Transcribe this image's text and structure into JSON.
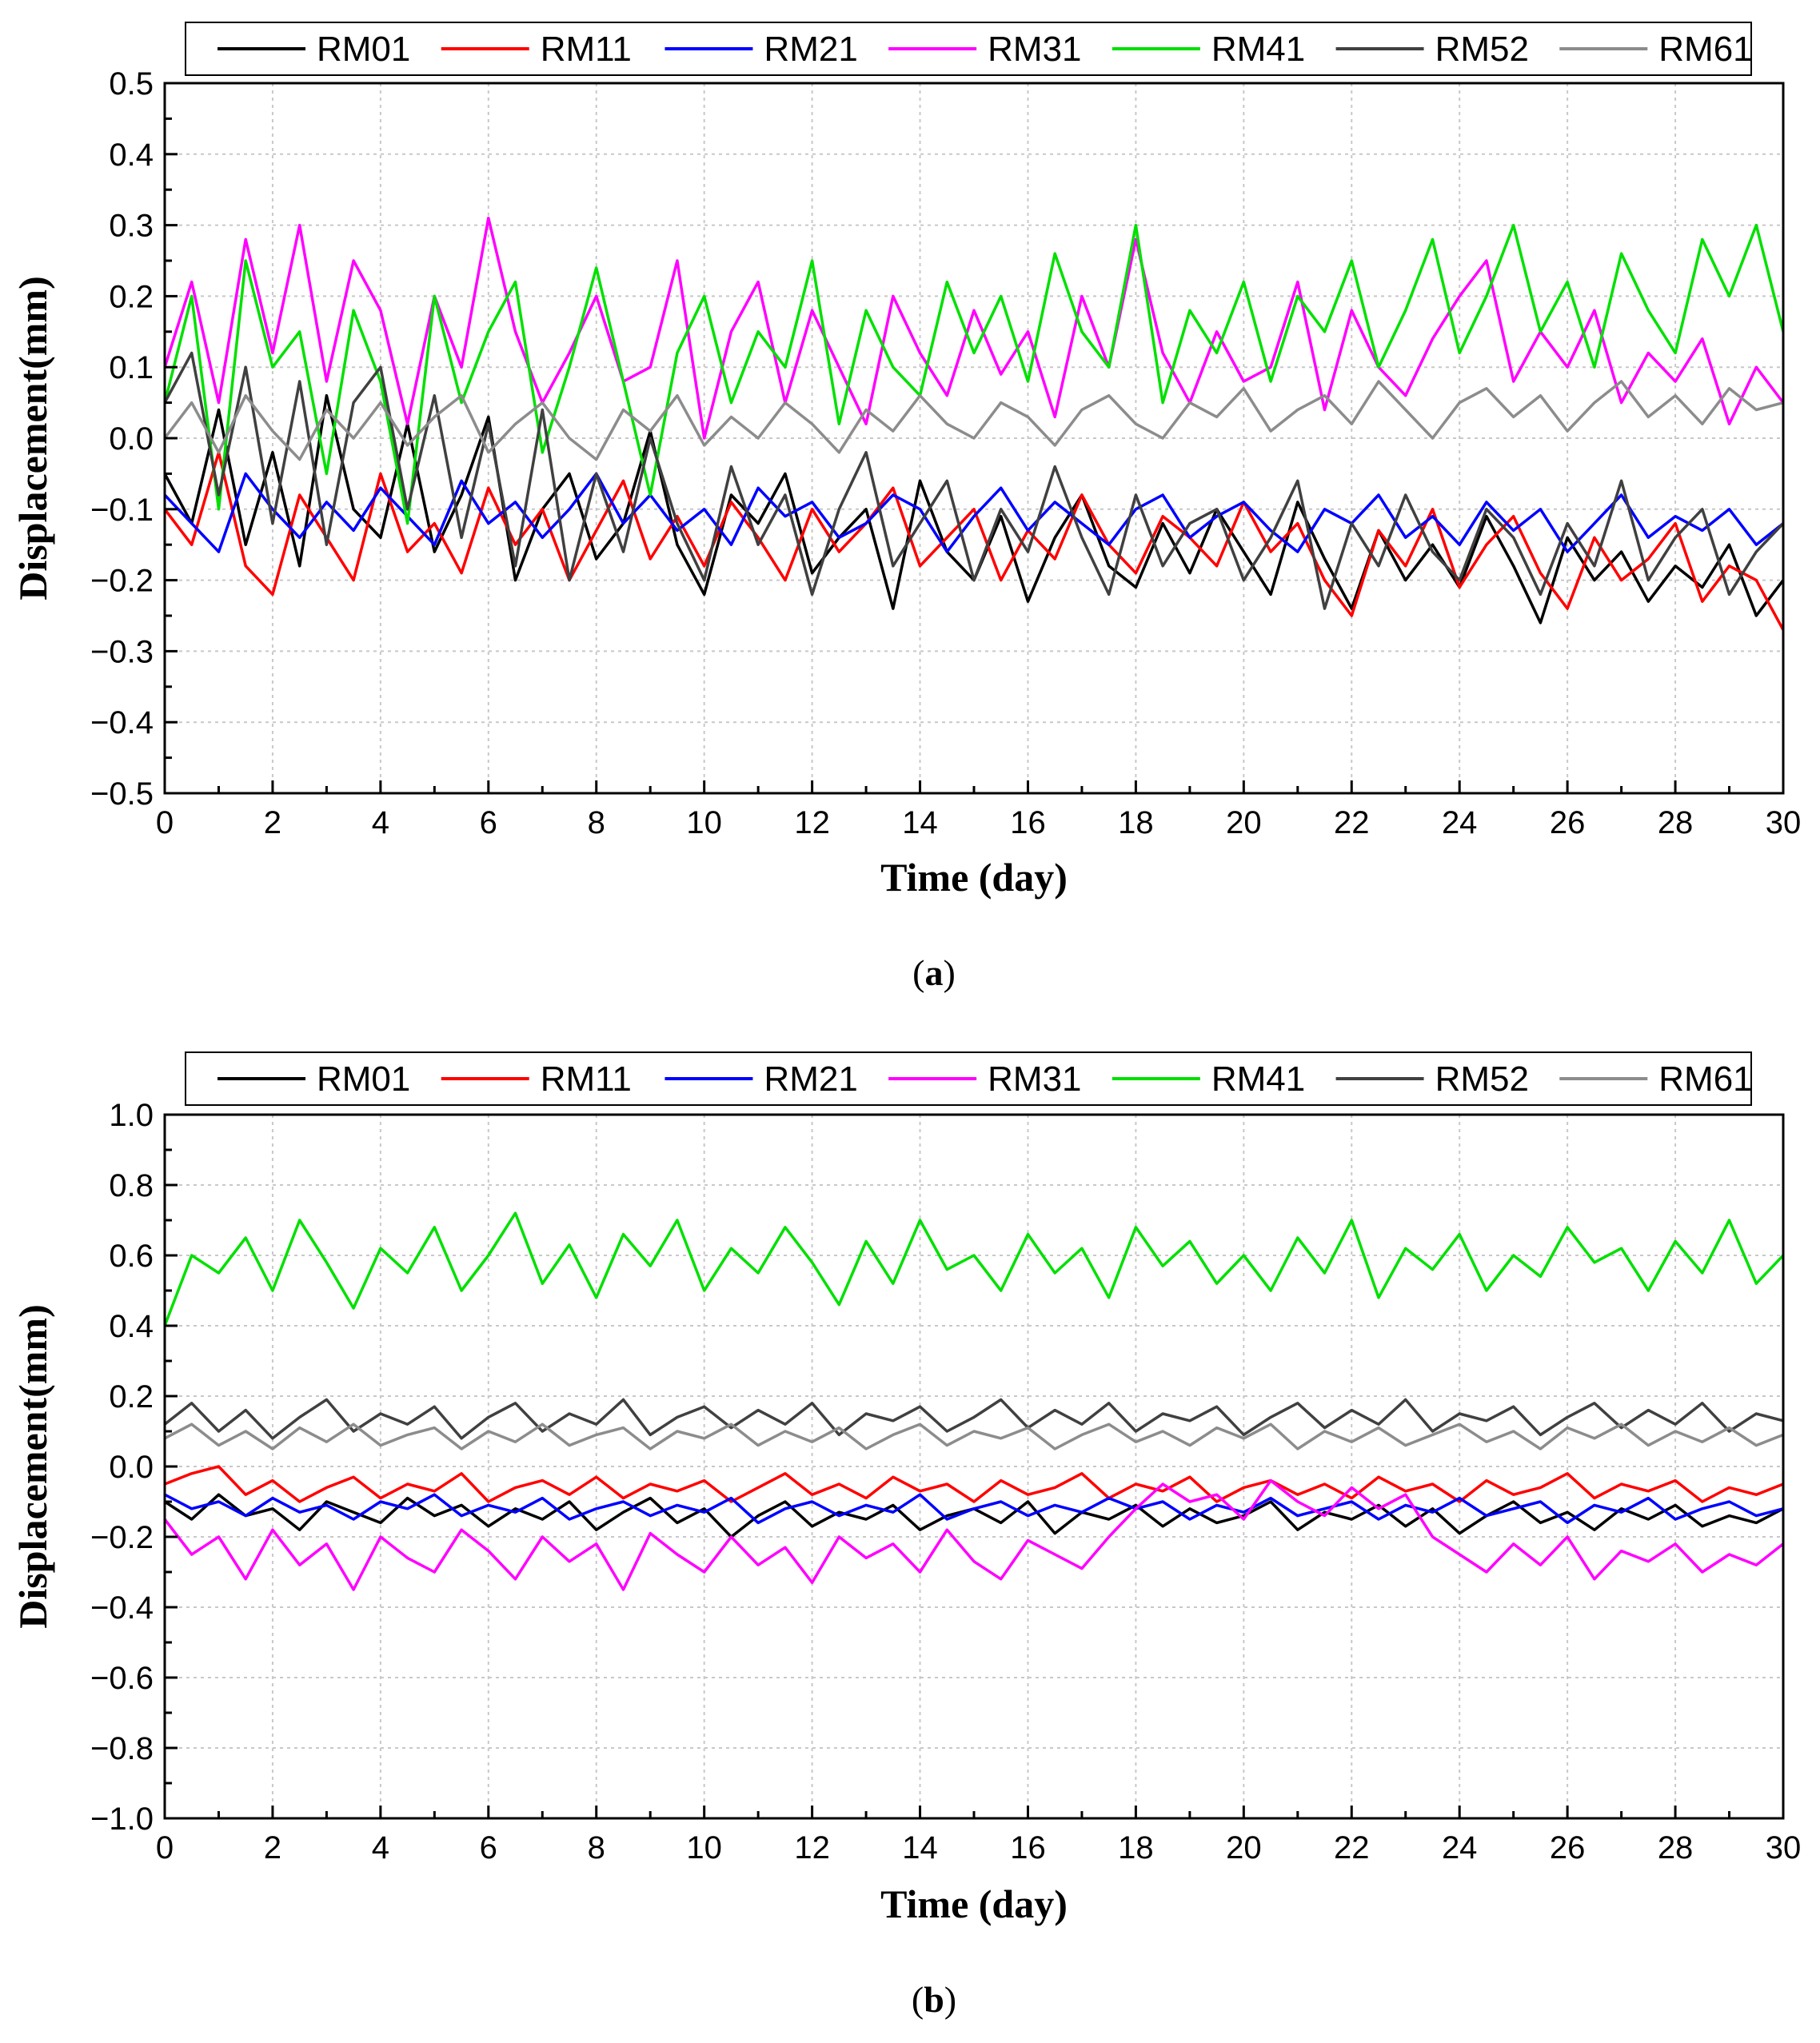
{
  "chart_data": [
    {
      "panel": "a",
      "caption_letter": "a",
      "type": "line",
      "title": "",
      "xlabel": "Time (day)",
      "ylabel": "Displacement(mm)",
      "xlim": [
        0,
        30
      ],
      "ylim": [
        -0.5,
        0.5
      ],
      "xticks": [
        "0",
        "2",
        "4",
        "6",
        "8",
        "10",
        "12",
        "14",
        "16",
        "18",
        "20",
        "22",
        "24",
        "26",
        "28",
        "30"
      ],
      "yticks": [
        "−0.5",
        "−0.4",
        "−0.3",
        "−0.2",
        "−0.1",
        "0.0",
        "0.1",
        "0.2",
        "0.3",
        "0.4",
        "0.5"
      ],
      "grid": true,
      "legend_position": "top",
      "series": [
        {
          "name": "RM01",
          "color": "#000000",
          "x_start": 0,
          "x_step": 0.5,
          "values": [
            -0.05,
            -0.12,
            0.04,
            -0.15,
            -0.02,
            -0.18,
            0.06,
            -0.1,
            -0.14,
            0.02,
            -0.16,
            -0.08,
            0.03,
            -0.2,
            -0.1,
            -0.05,
            -0.17,
            -0.12,
            0.01,
            -0.15,
            -0.22,
            -0.08,
            -0.12,
            -0.05,
            -0.19,
            -0.14,
            -0.1,
            -0.24,
            -0.06,
            -0.16,
            -0.2,
            -0.11,
            -0.23,
            -0.14,
            -0.08,
            -0.18,
            -0.21,
            -0.12,
            -0.19,
            -0.1,
            -0.16,
            -0.22,
            -0.09,
            -0.17,
            -0.24,
            -0.13,
            -0.2,
            -0.15,
            -0.21,
            -0.11,
            -0.18,
            -0.26,
            -0.14,
            -0.2,
            -0.16,
            -0.23,
            -0.18,
            -0.21,
            -0.15,
            -0.25,
            -0.2
          ]
        },
        {
          "name": "RM11",
          "color": "#ff0000",
          "x_start": 0,
          "x_step": 0.5,
          "values": [
            -0.1,
            -0.15,
            -0.02,
            -0.18,
            -0.22,
            -0.08,
            -0.14,
            -0.2,
            -0.05,
            -0.16,
            -0.12,
            -0.19,
            -0.07,
            -0.15,
            -0.1,
            -0.2,
            -0.13,
            -0.06,
            -0.17,
            -0.11,
            -0.18,
            -0.09,
            -0.14,
            -0.2,
            -0.1,
            -0.16,
            -0.12,
            -0.07,
            -0.18,
            -0.14,
            -0.1,
            -0.2,
            -0.13,
            -0.17,
            -0.08,
            -0.15,
            -0.19,
            -0.11,
            -0.14,
            -0.18,
            -0.09,
            -0.16,
            -0.12,
            -0.2,
            -0.25,
            -0.13,
            -0.18,
            -0.1,
            -0.21,
            -0.15,
            -0.11,
            -0.19,
            -0.24,
            -0.14,
            -0.2,
            -0.17,
            -0.12,
            -0.23,
            -0.18,
            -0.2,
            -0.27
          ]
        },
        {
          "name": "RM21",
          "color": "#0000ff",
          "x_start": 0,
          "x_step": 0.5,
          "values": [
            -0.08,
            -0.12,
            -0.16,
            -0.05,
            -0.1,
            -0.14,
            -0.09,
            -0.13,
            -0.07,
            -0.11,
            -0.15,
            -0.06,
            -0.12,
            -0.09,
            -0.14,
            -0.1,
            -0.05,
            -0.12,
            -0.08,
            -0.13,
            -0.1,
            -0.15,
            -0.07,
            -0.11,
            -0.09,
            -0.14,
            -0.12,
            -0.08,
            -0.1,
            -0.16,
            -0.11,
            -0.07,
            -0.13,
            -0.09,
            -0.12,
            -0.15,
            -0.1,
            -0.08,
            -0.14,
            -0.11,
            -0.09,
            -0.13,
            -0.16,
            -0.1,
            -0.12,
            -0.08,
            -0.14,
            -0.11,
            -0.15,
            -0.09,
            -0.13,
            -0.1,
            -0.16,
            -0.12,
            -0.08,
            -0.14,
            -0.11,
            -0.13,
            -0.1,
            -0.15,
            -0.12
          ]
        },
        {
          "name": "RM31",
          "color": "#ff00ff",
          "x_start": 0,
          "x_step": 0.5,
          "values": [
            0.1,
            0.22,
            0.05,
            0.28,
            0.12,
            0.3,
            0.08,
            0.25,
            0.18,
            0.02,
            0.2,
            0.1,
            0.31,
            0.15,
            0.05,
            0.12,
            0.2,
            0.08,
            0.1,
            0.25,
            0.0,
            0.15,
            0.22,
            0.05,
            0.18,
            0.1,
            0.02,
            0.2,
            0.12,
            0.06,
            0.18,
            0.09,
            0.15,
            0.03,
            0.2,
            0.1,
            0.28,
            0.12,
            0.05,
            0.15,
            0.08,
            0.1,
            0.22,
            0.04,
            0.18,
            0.1,
            0.06,
            0.14,
            0.2,
            0.25,
            0.08,
            0.15,
            0.1,
            0.18,
            0.05,
            0.12,
            0.08,
            0.14,
            0.02,
            0.1,
            0.05
          ]
        },
        {
          "name": "RM41",
          "color": "#00e000",
          "x_start": 0,
          "x_step": 0.5,
          "values": [
            0.05,
            0.2,
            -0.1,
            0.25,
            0.1,
            0.15,
            -0.05,
            0.18,
            0.08,
            -0.12,
            0.2,
            0.05,
            0.15,
            0.22,
            -0.02,
            0.1,
            0.24,
            0.08,
            -0.08,
            0.12,
            0.2,
            0.05,
            0.15,
            0.1,
            0.25,
            0.02,
            0.18,
            0.1,
            0.06,
            0.22,
            0.12,
            0.2,
            0.08,
            0.26,
            0.15,
            0.1,
            0.3,
            0.05,
            0.18,
            0.12,
            0.22,
            0.08,
            0.2,
            0.15,
            0.25,
            0.1,
            0.18,
            0.28,
            0.12,
            0.2,
            0.3,
            0.15,
            0.22,
            0.1,
            0.26,
            0.18,
            0.12,
            0.28,
            0.2,
            0.3,
            0.15
          ]
        },
        {
          "name": "RM52",
          "color": "#404040",
          "x_start": 0,
          "x_step": 0.5,
          "values": [
            0.05,
            0.12,
            -0.08,
            0.1,
            -0.12,
            0.08,
            -0.15,
            0.05,
            0.1,
            -0.1,
            0.06,
            -0.14,
            0.02,
            -0.18,
            0.04,
            -0.2,
            -0.05,
            -0.16,
            0.0,
            -0.12,
            -0.2,
            -0.04,
            -0.15,
            -0.08,
            -0.22,
            -0.1,
            -0.02,
            -0.18,
            -0.12,
            -0.06,
            -0.2,
            -0.1,
            -0.16,
            -0.04,
            -0.14,
            -0.22,
            -0.08,
            -0.18,
            -0.12,
            -0.1,
            -0.2,
            -0.14,
            -0.06,
            -0.24,
            -0.12,
            -0.18,
            -0.08,
            -0.16,
            -0.2,
            -0.1,
            -0.14,
            -0.22,
            -0.12,
            -0.18,
            -0.06,
            -0.2,
            -0.14,
            -0.1,
            -0.22,
            -0.16,
            -0.12
          ]
        },
        {
          "name": "RM61",
          "color": "#8c8c8c",
          "x_start": 0,
          "x_step": 0.5,
          "values": [
            0.0,
            0.05,
            -0.02,
            0.06,
            0.01,
            -0.03,
            0.04,
            0.0,
            0.05,
            -0.01,
            0.03,
            0.06,
            -0.02,
            0.02,
            0.05,
            0.0,
            -0.03,
            0.04,
            0.01,
            0.06,
            -0.01,
            0.03,
            0.0,
            0.05,
            0.02,
            -0.02,
            0.04,
            0.01,
            0.06,
            0.02,
            0.0,
            0.05,
            0.03,
            -0.01,
            0.04,
            0.06,
            0.02,
            0.0,
            0.05,
            0.03,
            0.07,
            0.01,
            0.04,
            0.06,
            0.02,
            0.08,
            0.04,
            0.0,
            0.05,
            0.07,
            0.03,
            0.06,
            0.01,
            0.05,
            0.08,
            0.03,
            0.06,
            0.02,
            0.07,
            0.04,
            0.05
          ]
        }
      ]
    },
    {
      "panel": "b",
      "caption_letter": "b",
      "type": "line",
      "title": "",
      "xlabel": "Time (day)",
      "ylabel": "Displacement(mm)",
      "xlim": [
        0,
        30
      ],
      "ylim": [
        -1.0,
        1.0
      ],
      "xticks": [
        "0",
        "2",
        "4",
        "6",
        "8",
        "10",
        "12",
        "14",
        "16",
        "18",
        "20",
        "22",
        "24",
        "26",
        "28",
        "30"
      ],
      "yticks": [
        "−1.0",
        "−0.8",
        "−0.6",
        "−0.4",
        "−0.2",
        "0.0",
        "0.2",
        "0.4",
        "0.6",
        "0.8",
        "1.0"
      ],
      "grid": true,
      "legend_position": "top",
      "series": [
        {
          "name": "RM01",
          "color": "#000000",
          "x_start": 0,
          "x_step": 0.5,
          "values": [
            -0.1,
            -0.15,
            -0.08,
            -0.14,
            -0.12,
            -0.18,
            -0.1,
            -0.13,
            -0.16,
            -0.09,
            -0.14,
            -0.11,
            -0.17,
            -0.12,
            -0.15,
            -0.1,
            -0.18,
            -0.13,
            -0.09,
            -0.16,
            -0.12,
            -0.2,
            -0.14,
            -0.1,
            -0.17,
            -0.13,
            -0.15,
            -0.11,
            -0.18,
            -0.14,
            -0.12,
            -0.16,
            -0.1,
            -0.19,
            -0.13,
            -0.15,
            -0.11,
            -0.17,
            -0.12,
            -0.16,
            -0.14,
            -0.1,
            -0.18,
            -0.13,
            -0.15,
            -0.11,
            -0.17,
            -0.12,
            -0.19,
            -0.14,
            -0.1,
            -0.16,
            -0.13,
            -0.18,
            -0.12,
            -0.15,
            -0.11,
            -0.17,
            -0.14,
            -0.16,
            -0.12
          ]
        },
        {
          "name": "RM11",
          "color": "#ff0000",
          "x_start": 0,
          "x_step": 0.5,
          "values": [
            -0.05,
            -0.02,
            0.0,
            -0.08,
            -0.04,
            -0.1,
            -0.06,
            -0.03,
            -0.09,
            -0.05,
            -0.07,
            -0.02,
            -0.1,
            -0.06,
            -0.04,
            -0.08,
            -0.03,
            -0.09,
            -0.05,
            -0.07,
            -0.04,
            -0.1,
            -0.06,
            -0.02,
            -0.08,
            -0.05,
            -0.09,
            -0.03,
            -0.07,
            -0.05,
            -0.1,
            -0.04,
            -0.08,
            -0.06,
            -0.02,
            -0.09,
            -0.05,
            -0.07,
            -0.03,
            -0.1,
            -0.06,
            -0.04,
            -0.08,
            -0.05,
            -0.09,
            -0.03,
            -0.07,
            -0.05,
            -0.1,
            -0.04,
            -0.08,
            -0.06,
            -0.02,
            -0.09,
            -0.05,
            -0.07,
            -0.04,
            -0.1,
            -0.06,
            -0.08,
            -0.05
          ]
        },
        {
          "name": "RM21",
          "color": "#0000ff",
          "x_start": 0,
          "x_step": 0.5,
          "values": [
            -0.08,
            -0.12,
            -0.1,
            -0.14,
            -0.09,
            -0.13,
            -0.11,
            -0.15,
            -0.1,
            -0.12,
            -0.08,
            -0.14,
            -0.11,
            -0.13,
            -0.09,
            -0.15,
            -0.12,
            -0.1,
            -0.14,
            -0.11,
            -0.13,
            -0.09,
            -0.16,
            -0.12,
            -0.1,
            -0.14,
            -0.11,
            -0.13,
            -0.08,
            -0.15,
            -0.12,
            -0.1,
            -0.14,
            -0.11,
            -0.13,
            -0.09,
            -0.12,
            -0.1,
            -0.15,
            -0.11,
            -0.13,
            -0.09,
            -0.14,
            -0.12,
            -0.1,
            -0.15,
            -0.11,
            -0.13,
            -0.09,
            -0.14,
            -0.12,
            -0.1,
            -0.16,
            -0.11,
            -0.13,
            -0.09,
            -0.15,
            -0.12,
            -0.1,
            -0.14,
            -0.12
          ]
        },
        {
          "name": "RM31",
          "color": "#ff00ff",
          "x_start": 0,
          "x_step": 0.5,
          "values": [
            -0.15,
            -0.25,
            -0.2,
            -0.32,
            -0.18,
            -0.28,
            -0.22,
            -0.35,
            -0.2,
            -0.26,
            -0.3,
            -0.18,
            -0.24,
            -0.32,
            -0.2,
            -0.27,
            -0.22,
            -0.35,
            -0.19,
            -0.25,
            -0.3,
            -0.2,
            -0.28,
            -0.23,
            -0.33,
            -0.2,
            -0.26,
            -0.22,
            -0.3,
            -0.18,
            -0.27,
            -0.32,
            -0.21,
            -0.25,
            -0.29,
            -0.2,
            -0.12,
            -0.05,
            -0.1,
            -0.08,
            -0.15,
            -0.04,
            -0.1,
            -0.14,
            -0.06,
            -0.12,
            -0.08,
            -0.2,
            -0.25,
            -0.3,
            -0.22,
            -0.28,
            -0.2,
            -0.32,
            -0.24,
            -0.27,
            -0.22,
            -0.3,
            -0.25,
            -0.28,
            -0.22
          ]
        },
        {
          "name": "RM41",
          "color": "#00e000",
          "x_start": 0,
          "x_step": 0.5,
          "values": [
            0.4,
            0.6,
            0.55,
            0.65,
            0.5,
            0.7,
            0.58,
            0.45,
            0.62,
            0.55,
            0.68,
            0.5,
            0.6,
            0.72,
            0.52,
            0.63,
            0.48,
            0.66,
            0.57,
            0.7,
            0.5,
            0.62,
            0.55,
            0.68,
            0.58,
            0.46,
            0.64,
            0.52,
            0.7,
            0.56,
            0.6,
            0.5,
            0.66,
            0.55,
            0.62,
            0.48,
            0.68,
            0.57,
            0.64,
            0.52,
            0.6,
            0.5,
            0.65,
            0.55,
            0.7,
            0.48,
            0.62,
            0.56,
            0.66,
            0.5,
            0.6,
            0.54,
            0.68,
            0.58,
            0.62,
            0.5,
            0.64,
            0.55,
            0.7,
            0.52,
            0.6
          ]
        },
        {
          "name": "RM52",
          "color": "#404040",
          "x_start": 0,
          "x_step": 0.5,
          "values": [
            0.12,
            0.18,
            0.1,
            0.16,
            0.08,
            0.14,
            0.19,
            0.1,
            0.15,
            0.12,
            0.17,
            0.08,
            0.14,
            0.18,
            0.1,
            0.15,
            0.12,
            0.19,
            0.09,
            0.14,
            0.17,
            0.11,
            0.16,
            0.12,
            0.18,
            0.09,
            0.15,
            0.13,
            0.17,
            0.1,
            0.14,
            0.19,
            0.11,
            0.16,
            0.12,
            0.18,
            0.1,
            0.15,
            0.13,
            0.17,
            0.09,
            0.14,
            0.18,
            0.11,
            0.16,
            0.12,
            0.19,
            0.1,
            0.15,
            0.13,
            0.17,
            0.09,
            0.14,
            0.18,
            0.11,
            0.16,
            0.12,
            0.18,
            0.1,
            0.15,
            0.13
          ]
        },
        {
          "name": "RM61",
          "color": "#8c8c8c",
          "x_start": 0,
          "x_step": 0.5,
          "values": [
            0.08,
            0.12,
            0.06,
            0.1,
            0.05,
            0.11,
            0.07,
            0.12,
            0.06,
            0.09,
            0.11,
            0.05,
            0.1,
            0.07,
            0.12,
            0.06,
            0.09,
            0.11,
            0.05,
            0.1,
            0.08,
            0.12,
            0.06,
            0.1,
            0.07,
            0.11,
            0.05,
            0.09,
            0.12,
            0.06,
            0.1,
            0.08,
            0.11,
            0.05,
            0.09,
            0.12,
            0.07,
            0.1,
            0.06,
            0.11,
            0.08,
            0.12,
            0.05,
            0.1,
            0.07,
            0.11,
            0.06,
            0.09,
            0.12,
            0.07,
            0.1,
            0.05,
            0.11,
            0.08,
            0.12,
            0.06,
            0.1,
            0.07,
            0.11,
            0.06,
            0.09
          ]
        }
      ]
    }
  ]
}
